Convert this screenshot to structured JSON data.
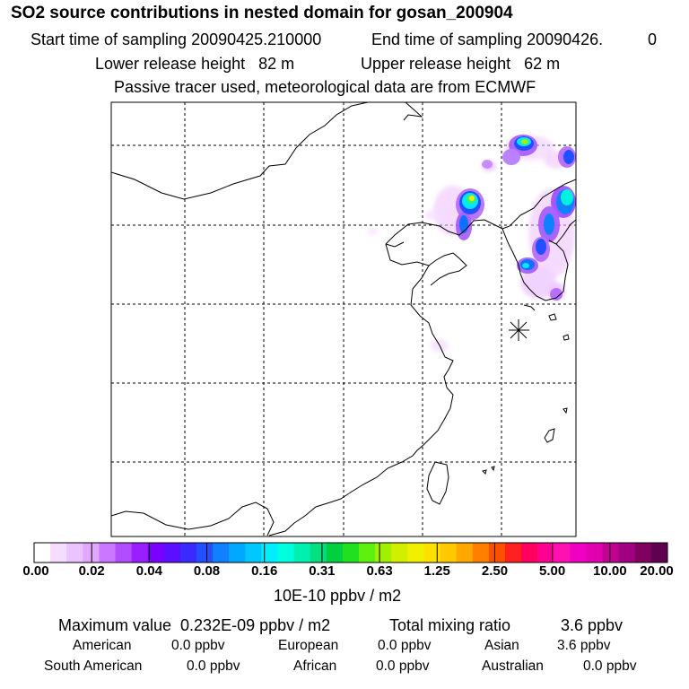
{
  "title": "SO2 source contributions in nested domain for gosan_200904",
  "sampling": {
    "start_label": "Start time of sampling 20090425.210000",
    "end_label": "End time of sampling 20090426.",
    "end_suffix": "0"
  },
  "release": {
    "lower": "Lower release height   82 m",
    "upper": "Upper release height   62 m"
  },
  "tracer_note": "Passive tracer used, meteorological data are from ECMWF",
  "colorbar": {
    "ticks": [
      "0.00",
      "0.02",
      "0.04",
      "0.08",
      "0.16",
      "0.31",
      "0.63",
      "1.25",
      "2.50",
      "5.00",
      "10.00",
      "20.00"
    ],
    "units": "10E-10 ppbv / m2",
    "colors": [
      "#ffffff",
      "#f5ddff",
      "#ebc3ff",
      "#e0a8ff",
      "#cc77ff",
      "#b24cff",
      "#9a1fff",
      "#7a00ff",
      "#5a10ff",
      "#3a2aff",
      "#2050ff",
      "#1080ff",
      "#00a8ff",
      "#00c8ff",
      "#00eeff",
      "#00ffdd",
      "#00f0b0",
      "#00e080",
      "#00d040",
      "#20e020",
      "#60f010",
      "#a0f000",
      "#d0f000",
      "#f0f000",
      "#ffe000",
      "#ffc800",
      "#ffa800",
      "#ff8000",
      "#ff5000",
      "#ff2020",
      "#ff0060",
      "#ff0090",
      "#ff10b0",
      "#f000c0",
      "#e000b0",
      "#c00090",
      "#a00080",
      "#800060",
      "#600050"
    ]
  },
  "summary": {
    "max_label": "Maximum value  0.232E-09 ppbv / m2",
    "total_label": "Total mixing ratio",
    "total_value": "3.6 ppbv"
  },
  "regions": [
    {
      "name": "American",
      "value": "0.0 ppbv"
    },
    {
      "name": "European",
      "value": "0.0 ppbv"
    },
    {
      "name": "Asian",
      "value": "3.6 ppbv"
    },
    {
      "name": "South American",
      "value": "0.0 ppbv"
    },
    {
      "name": "African",
      "value": "0.0 ppbv"
    },
    {
      "name": "Australian",
      "value": "0.0 ppbv"
    }
  ]
}
